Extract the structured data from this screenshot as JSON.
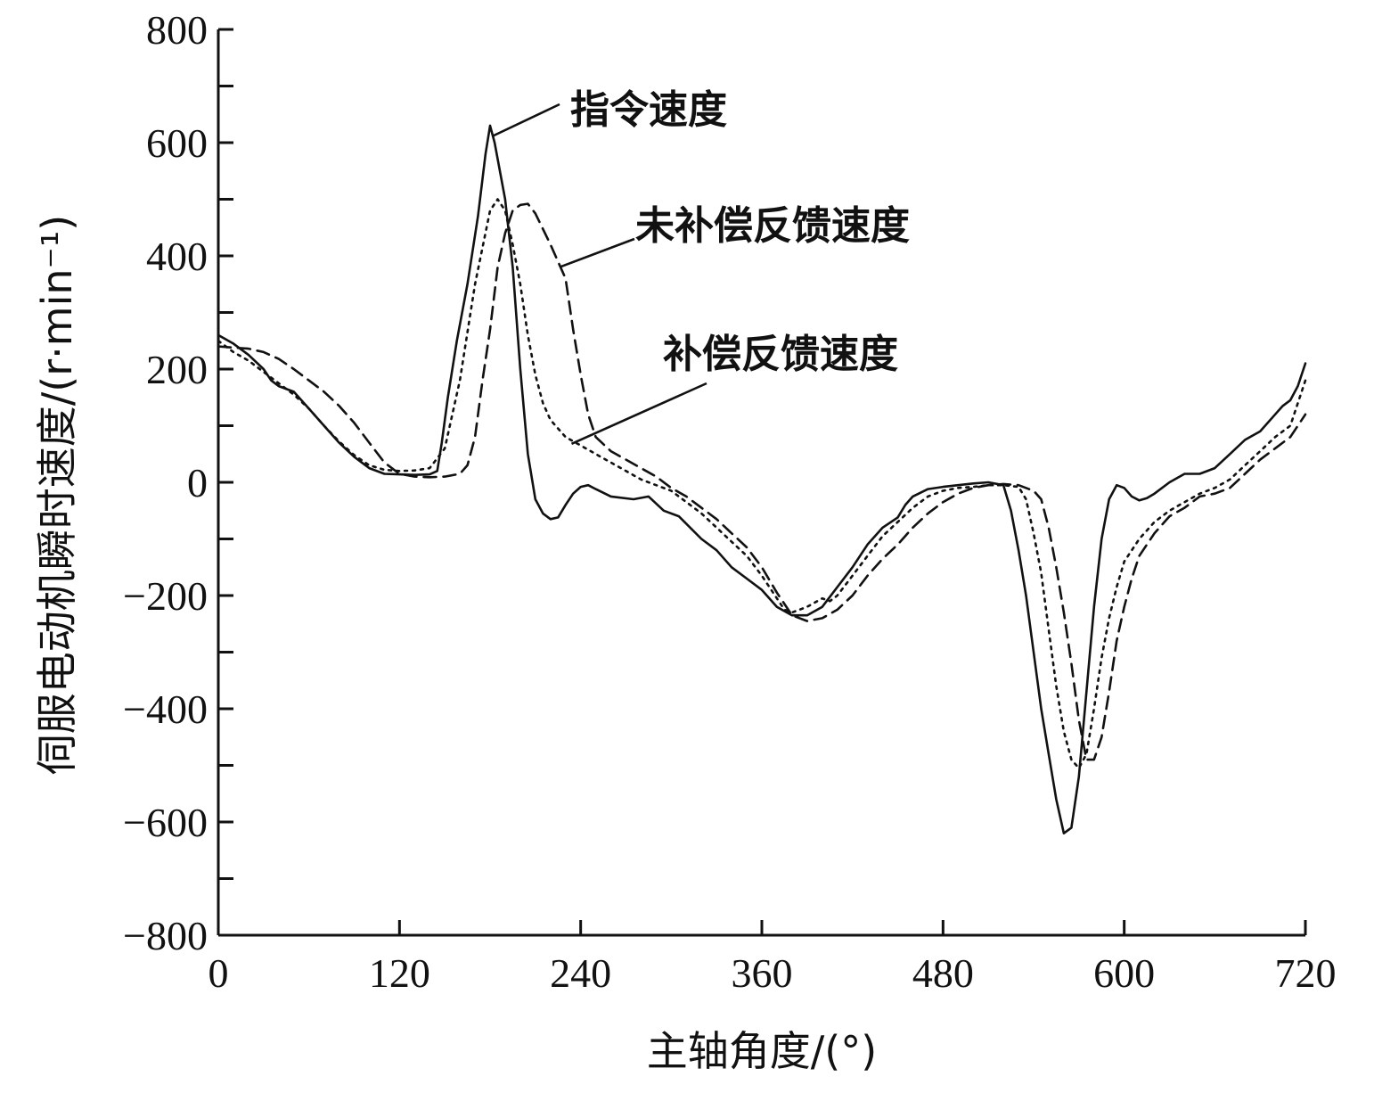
{
  "chart_data": {
    "type": "line",
    "title": "",
    "xlabel": "主轴角度/(°)",
    "ylabel": "伺服电动机瞬时速度/(r·min⁻¹)",
    "xlim": [
      0,
      720
    ],
    "ylim": [
      -800,
      800
    ],
    "xticks": [
      0,
      120,
      240,
      360,
      480,
      600,
      720
    ],
    "yticks": [
      -800,
      -600,
      -400,
      -200,
      0,
      200,
      400,
      600,
      800
    ],
    "grid": false,
    "series": [
      {
        "name": "指令速度",
        "style": "solid",
        "points": [
          [
            0,
            260
          ],
          [
            10,
            245
          ],
          [
            20,
            225
          ],
          [
            30,
            200
          ],
          [
            35,
            180
          ],
          [
            40,
            170
          ],
          [
            50,
            160
          ],
          [
            60,
            130
          ],
          [
            70,
            100
          ],
          [
            80,
            70
          ],
          [
            90,
            45
          ],
          [
            100,
            25
          ],
          [
            110,
            15
          ],
          [
            120,
            14
          ],
          [
            130,
            13
          ],
          [
            140,
            14
          ],
          [
            145,
            20
          ],
          [
            148,
            70
          ],
          [
            152,
            150
          ],
          [
            158,
            250
          ],
          [
            165,
            350
          ],
          [
            172,
            470
          ],
          [
            177,
            580
          ],
          [
            180,
            630
          ],
          [
            183,
            600
          ],
          [
            190,
            500
          ],
          [
            195,
            380
          ],
          [
            200,
            200
          ],
          [
            205,
            50
          ],
          [
            210,
            -30
          ],
          [
            215,
            -55
          ],
          [
            220,
            -65
          ],
          [
            225,
            -62
          ],
          [
            230,
            -40
          ],
          [
            235,
            -20
          ],
          [
            240,
            -8
          ],
          [
            245,
            -5
          ],
          [
            250,
            -12
          ],
          [
            260,
            -25
          ],
          [
            275,
            -30
          ],
          [
            285,
            -25
          ],
          [
            295,
            -50
          ],
          [
            305,
            -60
          ],
          [
            320,
            -100
          ],
          [
            330,
            -120
          ],
          [
            340,
            -150
          ],
          [
            350,
            -170
          ],
          [
            360,
            -190
          ],
          [
            370,
            -220
          ],
          [
            380,
            -235
          ],
          [
            390,
            -235
          ],
          [
            400,
            -220
          ],
          [
            410,
            -185
          ],
          [
            420,
            -150
          ],
          [
            430,
            -110
          ],
          [
            440,
            -80
          ],
          [
            450,
            -62
          ],
          [
            455,
            -40
          ],
          [
            460,
            -25
          ],
          [
            470,
            -12
          ],
          [
            480,
            -8
          ],
          [
            490,
            -5
          ],
          [
            500,
            -2
          ],
          [
            510,
            0
          ],
          [
            520,
            -5
          ],
          [
            525,
            -50
          ],
          [
            530,
            -120
          ],
          [
            535,
            -200
          ],
          [
            540,
            -300
          ],
          [
            545,
            -400
          ],
          [
            550,
            -480
          ],
          [
            555,
            -560
          ],
          [
            560,
            -620
          ],
          [
            565,
            -610
          ],
          [
            570,
            -520
          ],
          [
            575,
            -370
          ],
          [
            580,
            -220
          ],
          [
            585,
            -100
          ],
          [
            590,
            -30
          ],
          [
            595,
            -5
          ],
          [
            600,
            -10
          ],
          [
            605,
            -25
          ],
          [
            610,
            -32
          ],
          [
            615,
            -28
          ],
          [
            620,
            -20
          ],
          [
            630,
            0
          ],
          [
            640,
            15
          ],
          [
            650,
            15
          ],
          [
            660,
            25
          ],
          [
            670,
            50
          ],
          [
            680,
            75
          ],
          [
            690,
            90
          ],
          [
            700,
            120
          ],
          [
            705,
            135
          ],
          [
            710,
            145
          ],
          [
            715,
            170
          ],
          [
            720,
            210
          ]
        ]
      },
      {
        "name": "补偿反馈速度",
        "style": "dotted",
        "points": [
          [
            0,
            250
          ],
          [
            10,
            230
          ],
          [
            20,
            215
          ],
          [
            30,
            195
          ],
          [
            40,
            175
          ],
          [
            50,
            155
          ],
          [
            60,
            130
          ],
          [
            70,
            100
          ],
          [
            80,
            72
          ],
          [
            90,
            48
          ],
          [
            100,
            30
          ],
          [
            110,
            22
          ],
          [
            120,
            20
          ],
          [
            130,
            21
          ],
          [
            140,
            25
          ],
          [
            150,
            60
          ],
          [
            160,
            180
          ],
          [
            170,
            350
          ],
          [
            180,
            480
          ],
          [
            185,
            500
          ],
          [
            190,
            480
          ],
          [
            195,
            420
          ],
          [
            200,
            350
          ],
          [
            205,
            260
          ],
          [
            210,
            190
          ],
          [
            215,
            140
          ],
          [
            220,
            110
          ],
          [
            230,
            80
          ],
          [
            240,
            65
          ],
          [
            250,
            50
          ],
          [
            260,
            35
          ],
          [
            270,
            20
          ],
          [
            280,
            5
          ],
          [
            290,
            -5
          ],
          [
            300,
            -15
          ],
          [
            310,
            -35
          ],
          [
            320,
            -55
          ],
          [
            330,
            -80
          ],
          [
            340,
            -105
          ],
          [
            350,
            -130
          ],
          [
            360,
            -165
          ],
          [
            370,
            -205
          ],
          [
            375,
            -225
          ],
          [
            380,
            -230
          ],
          [
            390,
            -220
          ],
          [
            400,
            -205
          ],
          [
            405,
            -210
          ],
          [
            410,
            -200
          ],
          [
            420,
            -165
          ],
          [
            430,
            -130
          ],
          [
            440,
            -95
          ],
          [
            450,
            -70
          ],
          [
            460,
            -45
          ],
          [
            470,
            -25
          ],
          [
            480,
            -15
          ],
          [
            490,
            -10
          ],
          [
            500,
            -8
          ],
          [
            510,
            -5
          ],
          [
            520,
            -5
          ],
          [
            530,
            -8
          ],
          [
            535,
            -30
          ],
          [
            540,
            -90
          ],
          [
            545,
            -160
          ],
          [
            550,
            -260
          ],
          [
            555,
            -360
          ],
          [
            560,
            -440
          ],
          [
            565,
            -490
          ],
          [
            570,
            -505
          ],
          [
            575,
            -480
          ],
          [
            580,
            -400
          ],
          [
            585,
            -310
          ],
          [
            590,
            -240
          ],
          [
            595,
            -185
          ],
          [
            600,
            -140
          ],
          [
            610,
            -100
          ],
          [
            620,
            -70
          ],
          [
            630,
            -50
          ],
          [
            640,
            -35
          ],
          [
            650,
            -20
          ],
          [
            660,
            -10
          ],
          [
            670,
            5
          ],
          [
            680,
            30
          ],
          [
            690,
            55
          ],
          [
            700,
            80
          ],
          [
            710,
            100
          ],
          [
            720,
            180
          ]
        ]
      },
      {
        "name": "未补偿反馈速度",
        "style": "dashed",
        "points": [
          [
            0,
            240
          ],
          [
            10,
            238
          ],
          [
            20,
            236
          ],
          [
            30,
            230
          ],
          [
            40,
            218
          ],
          [
            50,
            200
          ],
          [
            60,
            180
          ],
          [
            70,
            160
          ],
          [
            80,
            135
          ],
          [
            90,
            105
          ],
          [
            100,
            70
          ],
          [
            110,
            35
          ],
          [
            120,
            15
          ],
          [
            130,
            10
          ],
          [
            140,
            9
          ],
          [
            150,
            10
          ],
          [
            160,
            15
          ],
          [
            165,
            30
          ],
          [
            170,
            80
          ],
          [
            175,
            180
          ],
          [
            180,
            270
          ],
          [
            185,
            380
          ],
          [
            190,
            440
          ],
          [
            195,
            480
          ],
          [
            200,
            490
          ],
          [
            205,
            492
          ],
          [
            210,
            475
          ],
          [
            220,
            420
          ],
          [
            230,
            360
          ],
          [
            235,
            270
          ],
          [
            240,
            190
          ],
          [
            245,
            120
          ],
          [
            250,
            80
          ],
          [
            260,
            55
          ],
          [
            270,
            40
          ],
          [
            280,
            25
          ],
          [
            290,
            10
          ],
          [
            300,
            -10
          ],
          [
            310,
            -25
          ],
          [
            320,
            -45
          ],
          [
            330,
            -65
          ],
          [
            340,
            -90
          ],
          [
            350,
            -115
          ],
          [
            360,
            -150
          ],
          [
            370,
            -195
          ],
          [
            380,
            -235
          ],
          [
            390,
            -245
          ],
          [
            400,
            -240
          ],
          [
            410,
            -225
          ],
          [
            420,
            -200
          ],
          [
            430,
            -165
          ],
          [
            440,
            -135
          ],
          [
            450,
            -110
          ],
          [
            460,
            -80
          ],
          [
            470,
            -55
          ],
          [
            480,
            -35
          ],
          [
            490,
            -20
          ],
          [
            500,
            -10
          ],
          [
            510,
            -5
          ],
          [
            520,
            -3
          ],
          [
            530,
            -5
          ],
          [
            540,
            -15
          ],
          [
            545,
            -30
          ],
          [
            550,
            -80
          ],
          [
            555,
            -150
          ],
          [
            560,
            -230
          ],
          [
            565,
            -320
          ],
          [
            570,
            -420
          ],
          [
            575,
            -490
          ],
          [
            580,
            -490
          ],
          [
            585,
            -450
          ],
          [
            590,
            -370
          ],
          [
            595,
            -280
          ],
          [
            600,
            -220
          ],
          [
            605,
            -170
          ],
          [
            610,
            -130
          ],
          [
            620,
            -90
          ],
          [
            630,
            -60
          ],
          [
            640,
            -45
          ],
          [
            650,
            -25
          ],
          [
            660,
            -20
          ],
          [
            670,
            -10
          ],
          [
            680,
            15
          ],
          [
            690,
            40
          ],
          [
            700,
            60
          ],
          [
            710,
            80
          ],
          [
            720,
            120
          ]
        ]
      }
    ],
    "annotations": [
      {
        "text": "指令速度",
        "series": 0,
        "at": [
          182,
          612
        ]
      },
      {
        "text": "未补偿反馈速度",
        "series": 2,
        "at": [
          226,
          380
        ]
      },
      {
        "text": "补偿反馈速度",
        "series": 1,
        "at": [
          234,
          68
        ]
      }
    ]
  }
}
